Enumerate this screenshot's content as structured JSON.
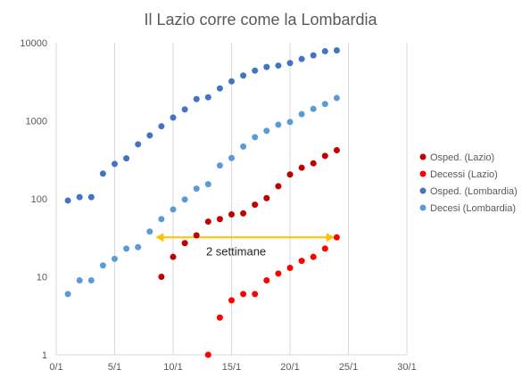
{
  "chart_data": {
    "type": "scatter",
    "title": "Il Lazio corre come la Lombardia",
    "xlabel": "",
    "ylabel": "",
    "y_scale": "log",
    "ylim": [
      1,
      10000
    ],
    "xlim": [
      0,
      30
    ],
    "x_ticks": [
      {
        "value": 0,
        "label": "0/1"
      },
      {
        "value": 5,
        "label": "5/1"
      },
      {
        "value": 10,
        "label": "10/1"
      },
      {
        "value": 15,
        "label": "15/1"
      },
      {
        "value": 20,
        "label": "20/1"
      },
      {
        "value": 25,
        "label": "25/1"
      },
      {
        "value": 30,
        "label": "30/1"
      }
    ],
    "y_ticks": [
      {
        "value": 1,
        "label": "1"
      },
      {
        "value": 10,
        "label": "10"
      },
      {
        "value": 100,
        "label": "100"
      },
      {
        "value": 1000,
        "label": "1000"
      },
      {
        "value": 10000,
        "label": "10000"
      }
    ],
    "grid": {
      "vertical": true,
      "horizontal": false
    },
    "legend": "right",
    "series": [
      {
        "name": "Osped. (Lazio)",
        "color": "#c00000",
        "x": [
          9,
          10,
          11,
          12,
          13,
          14,
          15,
          16,
          17,
          18,
          19,
          20,
          21,
          22,
          23,
          24
        ],
        "y": [
          10,
          18,
          27,
          34,
          51,
          55,
          63,
          65,
          84,
          102,
          145,
          205,
          250,
          285,
          355,
          420
        ]
      },
      {
        "name": "Decessi (Lazio)",
        "color": "#ff0000",
        "x": [
          13,
          14,
          15,
          16,
          17,
          18,
          19,
          20,
          21,
          22,
          23,
          24
        ],
        "y": [
          1,
          3,
          5,
          6,
          6,
          9,
          11,
          13,
          16,
          18,
          23,
          32
        ]
      },
      {
        "name": "Osped. (Lombardia)",
        "color": "#4472c4",
        "x": [
          1,
          2,
          3,
          4,
          5,
          6,
          7,
          8,
          9,
          10,
          11,
          12,
          13,
          14,
          15,
          16,
          17,
          18,
          19,
          20,
          21,
          22,
          23,
          24
        ],
        "y": [
          95,
          105,
          105,
          210,
          280,
          330,
          500,
          650,
          850,
          1100,
          1400,
          1900,
          2000,
          2600,
          3200,
          3800,
          4400,
          4900,
          5100,
          5500,
          6200,
          6900,
          7800,
          8000
        ]
      },
      {
        "name": "Decesi (Lombardia)",
        "color": "#5b9bd5",
        "x": [
          1,
          2,
          3,
          4,
          5,
          6,
          7,
          8,
          9,
          10,
          11,
          12,
          13,
          14,
          15,
          16,
          17,
          18,
          19,
          20,
          21,
          22,
          23,
          24
        ],
        "y": [
          6,
          9,
          9,
          14,
          17,
          23,
          24,
          38,
          55,
          73,
          98,
          135,
          154,
          267,
          333,
          468,
          617,
          744,
          890,
          966,
          1218,
          1420,
          1640,
          1960
        ]
      }
    ],
    "annotations": [
      {
        "type": "double-arrow",
        "text": "2 settimane",
        "x_start": 8.5,
        "x_end": 23.8,
        "y": 32,
        "color": "#ffc000"
      }
    ]
  }
}
